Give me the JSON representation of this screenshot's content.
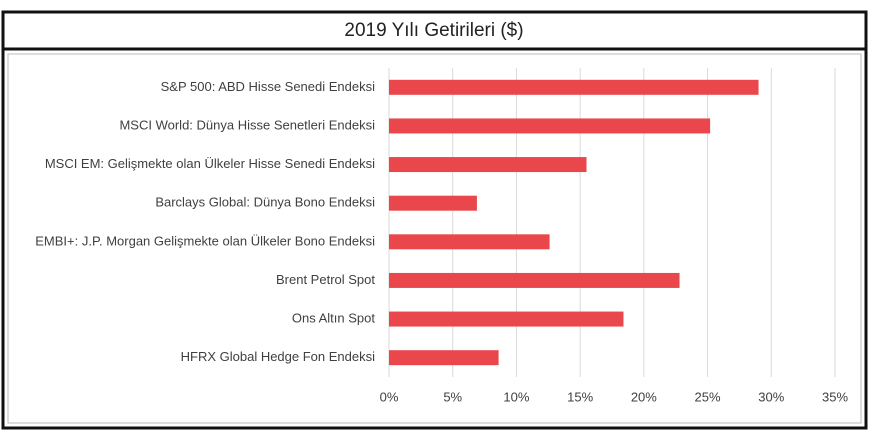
{
  "chart_data": {
    "type": "bar",
    "orientation": "horizontal",
    "title": "2019 Yılı Getirileri ($)",
    "categories": [
      "S&P 500: ABD Hisse Senedi Endeksi",
      "MSCI World: Dünya Hisse Senetleri Endeksi",
      "MSCI EM: Gelişmekte olan Ülkeler Hisse Senedi Endeksi",
      "Barclays Global: Dünya Bono Endeksi",
      "EMBI+: J.P. Morgan Gelişmekte olan Ülkeler Bono Endeksi",
      "Brent Petrol Spot",
      "Ons Altın Spot",
      "HFRX Global Hedge Fon Endeksi"
    ],
    "values": [
      29,
      25.2,
      15.5,
      6.9,
      12.6,
      22.8,
      18.4,
      8.6
    ],
    "color": "#e9474c",
    "xlim": [
      0,
      35
    ],
    "xticks": [
      {
        "value": 0,
        "label": "0%"
      },
      {
        "value": 5,
        "label": "5%"
      },
      {
        "value": 10,
        "label": "10%"
      },
      {
        "value": 15,
        "label": "15%"
      },
      {
        "value": 20,
        "label": "20%"
      },
      {
        "value": 25,
        "label": "25%"
      },
      {
        "value": 30,
        "label": "30%"
      },
      {
        "value": 35,
        "label": "35%"
      }
    ],
    "grid": true
  }
}
